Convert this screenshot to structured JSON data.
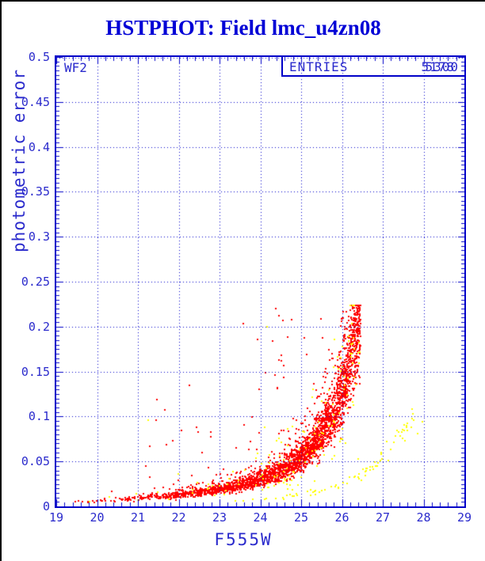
{
  "title": {
    "text": "HSTPHOT: Field lmc_u4zn08",
    "color": "#0000d6"
  },
  "plot": {
    "chip_label": "WF2",
    "legend": {
      "label": "ENTRIES",
      "values": [
        "5300",
        "5178"
      ],
      "note_rendering": "two entry counts overprinted in same box"
    },
    "frame_color": "#0000c8",
    "grid_color": "#0000cc",
    "tick_label_color": "#2a2acc",
    "background": "#ffffff"
  },
  "chart_data": {
    "type": "scatter",
    "title": "HSTPHOT: Field lmc_u4zn08",
    "xlabel": "F555W",
    "ylabel": "photometric error",
    "xlim": [
      19,
      29
    ],
    "ylim": [
      0,
      0.5
    ],
    "x_ticks": [
      19,
      20,
      21,
      22,
      23,
      24,
      25,
      26,
      27,
      28,
      29
    ],
    "y_ticks": [
      0,
      0.05,
      0.1,
      0.15,
      0.2,
      0.25,
      0.3,
      0.35,
      0.4,
      0.45,
      0.5
    ],
    "y_tick_labels": [
      "0",
      "0.05",
      "0.1",
      "0.15",
      "0.2",
      "0.25",
      "0.3",
      "0.35",
      "0.4",
      "0.45",
      "0.5"
    ],
    "x_minor_step": 0.2,
    "y_minor_step": 0.005,
    "grid": "dotted blue lines at every major tick, drawn over the points",
    "legend_position": "top-right box",
    "marker": "2px square",
    "seed": 42,
    "series": [
      {
        "name": "red-error-sequence",
        "color": "#ff0000",
        "count": 3000,
        "x_min": 19.0,
        "x_max": 26.45,
        "x_pow": 0.33,
        "sigma": 0.16,
        "outlier_frac": 0.065,
        "outlier_mult": 12,
        "y_cap": 0.224,
        "ridge": [
          [
            19,
            0.0045
          ],
          [
            20,
            0.006
          ],
          [
            21,
            0.009
          ],
          [
            22,
            0.013
          ],
          [
            23,
            0.019
          ],
          [
            24,
            0.03
          ],
          [
            24.5,
            0.04
          ],
          [
            25,
            0.055
          ],
          [
            25.5,
            0.082
          ],
          [
            25.8,
            0.105
          ],
          [
            26.0,
            0.13
          ],
          [
            26.2,
            0.165
          ],
          [
            26.35,
            0.198
          ],
          [
            26.45,
            0.208
          ]
        ],
        "description": "dense error-vs-magnitude sequence rising from ~0.005 at F555W=19 to ~0.22 at F555W=26.4, with sparse outliers above the band"
      },
      {
        "name": "yellow-mixed-with-red",
        "color": "#ffff00",
        "count": 150,
        "x_min": 19.0,
        "x_max": 26.45,
        "x_pow": 0.33,
        "sigma": 0.35,
        "outlier_frac": 0.12,
        "outlier_mult": 10,
        "y_cap": 0.224,
        "ridge": [
          [
            19,
            0.0045
          ],
          [
            20,
            0.006
          ],
          [
            21,
            0.009
          ],
          [
            22,
            0.013
          ],
          [
            23,
            0.019
          ],
          [
            24,
            0.03
          ],
          [
            24.5,
            0.04
          ],
          [
            25,
            0.055
          ],
          [
            25.5,
            0.082
          ],
          [
            25.8,
            0.105
          ],
          [
            26.0,
            0.13
          ],
          [
            26.2,
            0.165
          ],
          [
            26.35,
            0.198
          ],
          [
            26.45,
            0.208
          ]
        ],
        "description": "sparse yellow points sprinkled through the red sequence"
      },
      {
        "name": "yellow-faint-sequence",
        "color": "#ffff00",
        "count": 85,
        "x_min": 23.2,
        "x_max": 28.05,
        "x_pow": 0.55,
        "sigma": 0.1,
        "outlier_frac": 0.05,
        "outlier_mult": 3,
        "y_cap": 0.13,
        "ridge": [
          [
            23.2,
            0.005
          ],
          [
            24,
            0.008
          ],
          [
            25,
            0.013
          ],
          [
            25.5,
            0.017
          ],
          [
            26,
            0.024
          ],
          [
            26.5,
            0.036
          ],
          [
            27,
            0.055
          ],
          [
            27.5,
            0.082
          ],
          [
            28.05,
            0.115
          ]
        ],
        "description": "second sparse yellow sequence rising from ~0.005 at F555W=23.3 to ~0.11 at F555W=28"
      }
    ]
  }
}
